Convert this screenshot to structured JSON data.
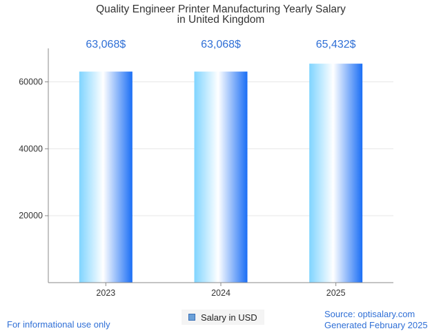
{
  "chart_data": {
    "type": "bar",
    "title": [
      "Quality Engineer Printer Manufacturing Yearly Salary",
      "in United Kingdom"
    ],
    "categories": [
      "2023",
      "2024",
      "2025"
    ],
    "values": [
      63068,
      63068,
      65432
    ],
    "data_labels": [
      "63,068$",
      "63,068$",
      "65,432$"
    ],
    "yticks": [
      20000,
      40000,
      60000
    ],
    "ytick_labels": [
      "20000",
      "40000",
      "60000"
    ],
    "ylim": [
      0,
      70000
    ],
    "grid": true,
    "xlabel": "",
    "ylabel": "",
    "legend": {
      "label": "Salary in USD",
      "position": "bottom-center"
    }
  },
  "colors": {
    "bar_edge": "#1a6ef5",
    "bar_mid": "#ffffff",
    "bar_light": "#7fd4ff",
    "accent_text": "#2f6fd6"
  },
  "footer": {
    "disclaimer": "For informational use only",
    "source": "Source: optisalary.com",
    "generated": "Generated February 2025"
  }
}
